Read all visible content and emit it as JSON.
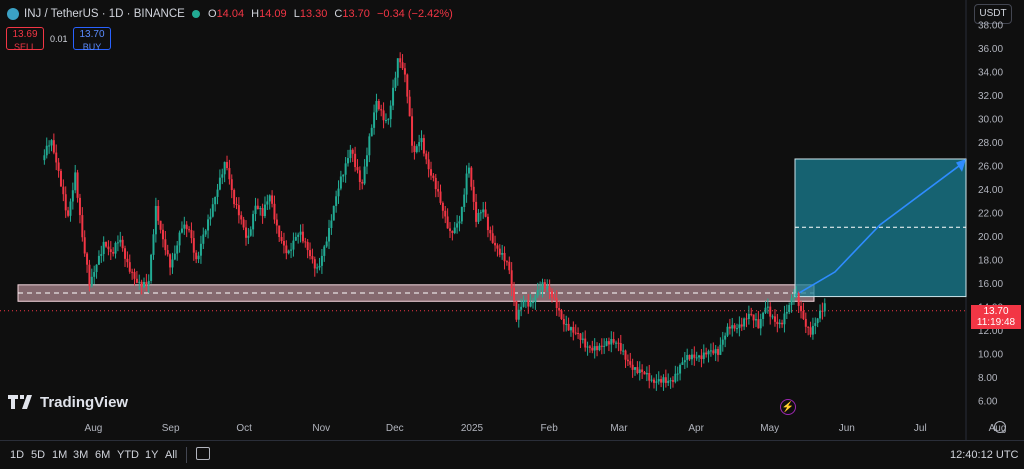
{
  "header": {
    "symbol_title": "INJ / TetherUS · 1D · BINANCE",
    "ohlc": [
      {
        "k": "O",
        "v": "14.04"
      },
      {
        "k": "H",
        "v": "14.09"
      },
      {
        "k": "L",
        "v": "13.30"
      },
      {
        "k": "C",
        "v": "13.70"
      }
    ],
    "change": "−0.34 (−2.42%)",
    "currency": "USDT"
  },
  "trade": {
    "sell_price": "13.69",
    "sell_label": "SELL",
    "spread": "0.01",
    "buy_price": "13.70",
    "buy_label": "BUY"
  },
  "price_tag": {
    "price": "13.70",
    "countdown": "11:19:48"
  },
  "logo_text": "TradingView",
  "bottom": {
    "ranges": [
      "1D",
      "5D",
      "1M",
      "3M",
      "6M",
      "YTD",
      "1Y",
      "All"
    ],
    "clock": "12:40:12 UTC"
  },
  "colors": {
    "up": "#22ab94",
    "down": "#f23645",
    "target": "#1a7f93",
    "zone": "#e8b4c0",
    "arrow": "#2e8cff"
  },
  "chart_data": {
    "type": "candlestick",
    "ylim": [
      5,
      38
    ],
    "y_ticks": [
      "6.00",
      "8.00",
      "10.00",
      "12.00",
      "14.00",
      "16.00",
      "18.00",
      "20.00",
      "22.00",
      "24.00",
      "26.00",
      "28.00",
      "30.00",
      "32.00",
      "34.00",
      "36.00",
      "38.00"
    ],
    "x_ticks": [
      {
        "label": "Aug",
        "m": 0.7
      },
      {
        "label": "Sep",
        "m": 1.75
      },
      {
        "label": "Oct",
        "m": 2.75
      },
      {
        "label": "Nov",
        "m": 3.8
      },
      {
        "label": "Dec",
        "m": 4.8
      },
      {
        "label": "2025",
        "m": 5.85
      },
      {
        "label": "Feb",
        "m": 6.9
      },
      {
        "label": "Mar",
        "m": 7.85
      },
      {
        "label": "Apr",
        "m": 8.9
      },
      {
        "label": "May",
        "m": 9.9
      },
      {
        "label": "Jun",
        "m": 10.95
      },
      {
        "label": "Jul",
        "m": 11.95
      },
      {
        "label": "Aug",
        "m": 13.0
      }
    ],
    "close_path": [
      [
        0,
        26.5
      ],
      [
        0.12,
        27.8
      ],
      [
        0.25,
        24.8
      ],
      [
        0.35,
        22
      ],
      [
        0.45,
        25.5
      ],
      [
        0.55,
        19.5
      ],
      [
        0.65,
        15.5
      ],
      [
        0.75,
        18
      ],
      [
        0.85,
        20
      ],
      [
        0.95,
        18.5
      ],
      [
        1.05,
        19.5
      ],
      [
        1.15,
        17.5
      ],
      [
        1.3,
        16.5
      ],
      [
        1.45,
        16
      ],
      [
        1.55,
        22
      ],
      [
        1.62,
        20
      ],
      [
        1.75,
        17.8
      ],
      [
        1.9,
        21
      ],
      [
        2.0,
        20.2
      ],
      [
        2.1,
        17.5
      ],
      [
        2.2,
        20.5
      ],
      [
        2.35,
        23.5
      ],
      [
        2.5,
        26
      ],
      [
        2.6,
        23
      ],
      [
        2.7,
        22
      ],
      [
        2.8,
        20
      ],
      [
        2.9,
        22.5
      ],
      [
        3.0,
        21.5
      ],
      [
        3.1,
        23.5
      ],
      [
        3.2,
        21
      ],
      [
        3.35,
        18.5
      ],
      [
        3.5,
        20
      ],
      [
        3.62,
        19
      ],
      [
        3.75,
        17.5
      ],
      [
        3.9,
        20
      ],
      [
        4.05,
        24.5
      ],
      [
        4.2,
        28
      ],
      [
        4.35,
        24
      ],
      [
        4.55,
        31.5
      ],
      [
        4.7,
        30
      ],
      [
        4.85,
        35
      ],
      [
        4.95,
        33
      ],
      [
        5.05,
        27
      ],
      [
        5.15,
        29
      ],
      [
        5.25,
        26
      ],
      [
        5.35,
        24
      ],
      [
        5.45,
        22
      ],
      [
        5.55,
        20.5
      ],
      [
        5.7,
        22
      ],
      [
        5.8,
        26
      ],
      [
        5.9,
        21
      ],
      [
        6.0,
        22.5
      ],
      [
        6.1,
        20.5
      ],
      [
        6.2,
        19
      ],
      [
        6.35,
        17
      ],
      [
        6.45,
        13
      ],
      [
        6.55,
        15
      ],
      [
        6.65,
        14.5
      ],
      [
        6.8,
        15.5
      ],
      [
        6.9,
        15.2
      ],
      [
        7.0,
        14.5
      ],
      [
        7.1,
        13
      ],
      [
        7.25,
        11.5
      ],
      [
        7.4,
        10.5
      ],
      [
        7.55,
        11
      ],
      [
        7.7,
        10.8
      ],
      [
        7.85,
        10.5
      ],
      [
        8.0,
        9.5
      ],
      [
        8.15,
        8.5
      ],
      [
        8.3,
        7.2
      ],
      [
        8.45,
        8.2
      ],
      [
        8.6,
        8
      ],
      [
        8.75,
        9.2
      ],
      [
        8.9,
        10
      ],
      [
        9.05,
        10.5
      ],
      [
        9.2,
        9.7
      ],
      [
        9.35,
        12.5
      ],
      [
        9.5,
        12.8
      ],
      [
        9.62,
        13.2
      ],
      [
        9.75,
        12
      ],
      [
        9.85,
        14.4
      ],
      [
        9.95,
        13.4
      ],
      [
        10.05,
        12.5
      ],
      [
        10.15,
        13.5
      ],
      [
        10.25,
        15
      ],
      [
        10.35,
        13.4
      ],
      [
        10.45,
        12.2
      ],
      [
        10.55,
        13
      ],
      [
        10.65,
        13.7
      ]
    ]
  }
}
